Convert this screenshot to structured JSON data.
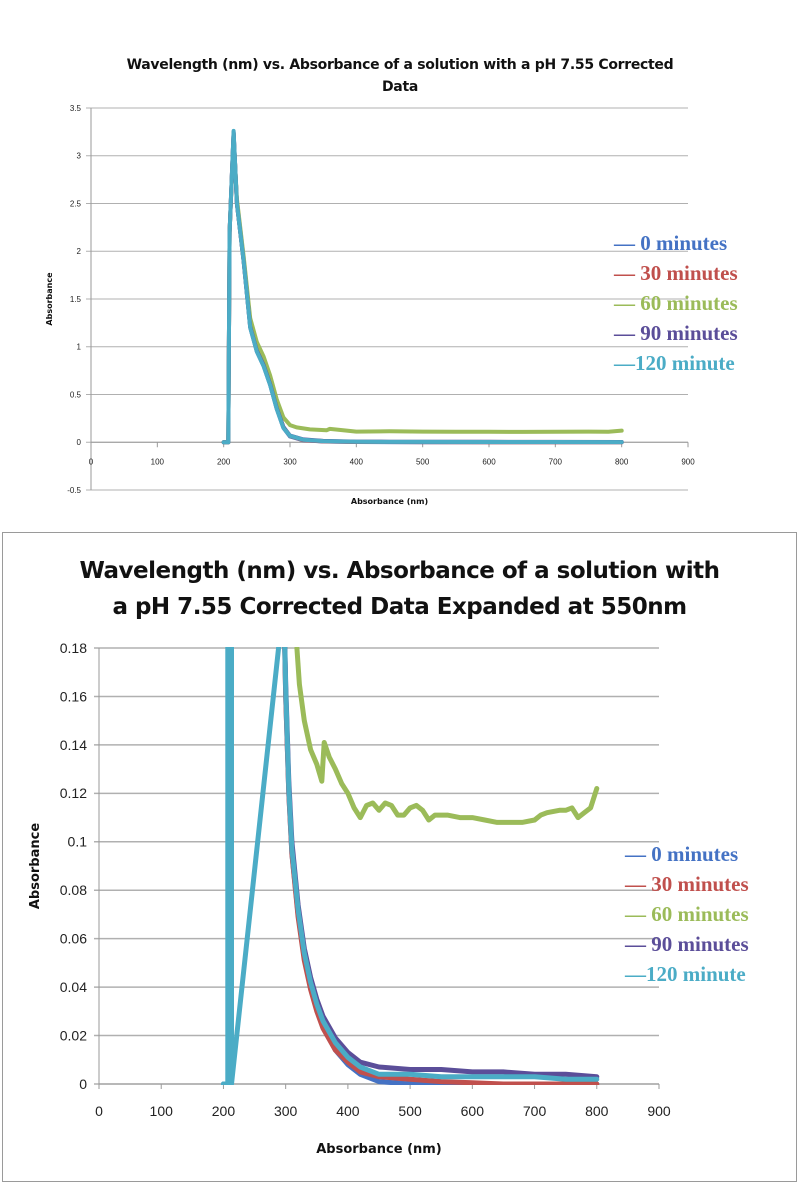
{
  "chart_data": [
    {
      "type": "line",
      "title_lines": [
        "Wavelength (nm) vs. Absorbance of a solution with a pH 7.55 Corrected",
        "Data"
      ],
      "xlabel": "Absorbance (nm)",
      "ylabel": "Absorbance",
      "xlim": [
        0,
        900
      ],
      "ylim": [
        -0.5,
        3.5
      ],
      "xticks": [
        "0",
        "100",
        "200",
        "300",
        "400",
        "500",
        "600",
        "700",
        "800",
        "900"
      ],
      "yticks": [
        "-0.5",
        "0",
        "0.5",
        "1",
        "1.5",
        "2",
        "2.5",
        "3",
        "3.5"
      ],
      "grid": true,
      "legend_position": "right",
      "series": [
        {
          "name": "0 minutes",
          "legend_label": "— 0 minutes",
          "color": "#4472c4",
          "x": [
            200,
            207,
            209,
            215,
            220,
            230,
            240,
            250,
            260,
            270,
            280,
            290,
            300,
            320,
            350,
            400,
            500,
            600,
            700,
            800
          ],
          "y": [
            0,
            0,
            2.2,
            3.25,
            2.5,
            1.9,
            1.2,
            0.95,
            0.8,
            0.6,
            0.35,
            0.15,
            0.06,
            0.02,
            0.008,
            0.003,
            0.001,
            0.001,
            0.001,
            0.001
          ]
        },
        {
          "name": "30 minutes",
          "legend_label": "— 30 minutes",
          "color": "#c0504d",
          "x": [
            200,
            207,
            209,
            215,
            220,
            230,
            240,
            250,
            260,
            270,
            280,
            290,
            300,
            320,
            350,
            400,
            500,
            600,
            700,
            800
          ],
          "y": [
            0,
            0,
            2.2,
            3.24,
            2.5,
            1.9,
            1.22,
            0.97,
            0.82,
            0.62,
            0.36,
            0.16,
            0.065,
            0.022,
            0.009,
            0.003,
            0.002,
            0.001,
            0.001,
            0.001
          ]
        },
        {
          "name": "60 minutes",
          "legend_label": "— 60 minutes",
          "color": "#9bbb59",
          "x": [
            200,
            207,
            209,
            215,
            220,
            230,
            240,
            250,
            260,
            270,
            280,
            290,
            300,
            310,
            330,
            355,
            360,
            380,
            400,
            450,
            500,
            550,
            600,
            650,
            700,
            750,
            780,
            800
          ],
          "y": [
            0,
            0,
            2.2,
            3.2,
            2.55,
            1.95,
            1.3,
            1.05,
            0.9,
            0.7,
            0.45,
            0.26,
            0.18,
            0.155,
            0.135,
            0.125,
            0.14,
            0.125,
            0.112,
            0.115,
            0.112,
            0.11,
            0.109,
            0.108,
            0.11,
            0.112,
            0.11,
            0.122
          ]
        },
        {
          "name": "90 minutes",
          "legend_label": "— 90 minutes",
          "color": "#5b4e99",
          "x": [
            200,
            207,
            209,
            215,
            220,
            230,
            240,
            250,
            260,
            270,
            280,
            290,
            300,
            320,
            350,
            400,
            450,
            500,
            600,
            700,
            800
          ],
          "y": [
            0,
            0,
            2.2,
            3.24,
            2.5,
            1.9,
            1.21,
            0.96,
            0.81,
            0.61,
            0.36,
            0.16,
            0.07,
            0.03,
            0.014,
            0.007,
            0.006,
            0.006,
            0.005,
            0.004,
            0.003
          ]
        },
        {
          "name": "120 minute",
          "legend_label": "—120 minute",
          "color": "#4bacc6",
          "x": [
            200,
            207,
            209,
            215,
            220,
            230,
            240,
            250,
            260,
            270,
            280,
            290,
            300,
            320,
            350,
            400,
            450,
            500,
            600,
            700,
            800
          ],
          "y": [
            0,
            0,
            2.2,
            3.26,
            2.5,
            1.9,
            1.2,
            0.95,
            0.8,
            0.6,
            0.35,
            0.15,
            0.068,
            0.027,
            0.012,
            0.005,
            0.004,
            0.004,
            0.003,
            0.003,
            0.002
          ]
        }
      ]
    },
    {
      "type": "line",
      "title_lines": [
        "Wavelength (nm) vs. Absorbance of a solution with",
        "a pH 7.55 Corrected Data Expanded at 550nm"
      ],
      "xlabel": "Absorbance (nm)",
      "ylabel": "Absorbance",
      "xlim": [
        0,
        900
      ],
      "ylim": [
        0,
        0.18
      ],
      "xticks": [
        "0",
        "100",
        "200",
        "300",
        "400",
        "500",
        "600",
        "700",
        "800",
        "900"
      ],
      "yticks": [
        "0",
        "0.02",
        "0.04",
        "0.06",
        "0.08",
        "0.1",
        "0.12",
        "0.14",
        "0.16",
        "0.18"
      ],
      "grid": true,
      "legend_position": "right",
      "series": [
        {
          "name": "0 minutes",
          "legend_label": "— 0 minutes",
          "color": "#4472c4",
          "x": [
            200,
            207,
            208,
            208,
            297,
            300,
            305,
            310,
            320,
            330,
            340,
            350,
            360,
            380,
            400,
            420,
            450,
            500,
            550,
            600,
            700,
            800
          ],
          "y": [
            0,
            0,
            0,
            0.2,
            0.2,
            0.16,
            0.12,
            0.095,
            0.07,
            0.052,
            0.04,
            0.031,
            0.024,
            0.014,
            0.008,
            0.004,
            0.001,
            0,
            0,
            0,
            0,
            0
          ]
        },
        {
          "name": "30 minutes",
          "legend_label": "— 30 minutes",
          "color": "#c0504d",
          "x": [
            297,
            300,
            305,
            310,
            320,
            330,
            340,
            350,
            360,
            380,
            400,
            420,
            450,
            500,
            550,
            600,
            650,
            700,
            800
          ],
          "y": [
            0.2,
            0.16,
            0.12,
            0.095,
            0.069,
            0.051,
            0.039,
            0.03,
            0.023,
            0.014,
            0.009,
            0.005,
            0.003,
            0.002,
            0.001,
            0.0005,
            0,
            0,
            0
          ]
        },
        {
          "name": "60 minutes",
          "legend_label": "— 60 minutes",
          "color": "#9bbb59",
          "x": [
            318,
            322,
            330,
            340,
            350,
            358,
            362,
            370,
            380,
            390,
            400,
            410,
            420,
            430,
            440,
            450,
            460,
            470,
            480,
            490,
            500,
            510,
            520,
            530,
            540,
            560,
            580,
            600,
            620,
            640,
            660,
            680,
            700,
            710,
            720,
            740,
            750,
            760,
            770,
            780,
            790,
            800
          ],
          "y": [
            0.18,
            0.165,
            0.15,
            0.138,
            0.132,
            0.125,
            0.141,
            0.135,
            0.13,
            0.124,
            0.12,
            0.114,
            0.11,
            0.115,
            0.116,
            0.113,
            0.116,
            0.115,
            0.111,
            0.111,
            0.114,
            0.115,
            0.113,
            0.109,
            0.111,
            0.111,
            0.11,
            0.11,
            0.109,
            0.108,
            0.108,
            0.108,
            0.109,
            0.111,
            0.112,
            0.113,
            0.113,
            0.114,
            0.11,
            0.112,
            0.114,
            0.122
          ]
        },
        {
          "name": "90 minutes",
          "legend_label": "— 90 minutes",
          "color": "#5b4e99",
          "x": [
            297,
            300,
            305,
            310,
            320,
            330,
            340,
            350,
            360,
            380,
            400,
            420,
            450,
            500,
            550,
            600,
            650,
            700,
            750,
            800
          ],
          "y": [
            0.2,
            0.165,
            0.125,
            0.1,
            0.074,
            0.056,
            0.044,
            0.035,
            0.028,
            0.019,
            0.013,
            0.009,
            0.007,
            0.006,
            0.006,
            0.005,
            0.005,
            0.004,
            0.004,
            0.003
          ]
        },
        {
          "name": "120 minute",
          "legend_label": "—120 minute",
          "color": "#4bacc6",
          "x": [
            200,
            206,
            207,
            207,
            213,
            213,
            297,
            300,
            305,
            310,
            320,
            330,
            340,
            350,
            360,
            380,
            400,
            420,
            450,
            500,
            550,
            600,
            650,
            700,
            750,
            800
          ],
          "y": [
            0,
            0,
            0,
            0.2,
            0.2,
            0,
            0.2,
            0.163,
            0.122,
            0.097,
            0.072,
            0.054,
            0.042,
            0.033,
            0.026,
            0.017,
            0.011,
            0.007,
            0.004,
            0.004,
            0.003,
            0.003,
            0.003,
            0.003,
            0.002,
            0.002
          ]
        }
      ]
    }
  ]
}
